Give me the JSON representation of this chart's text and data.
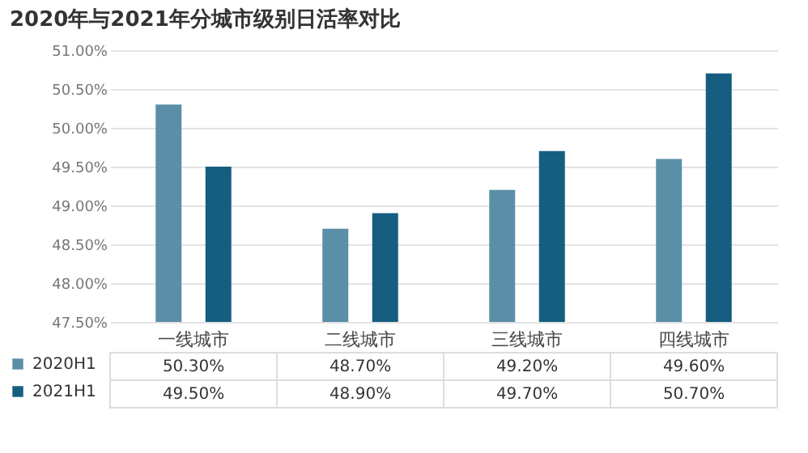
{
  "chart_data": {
    "type": "bar",
    "title": "2020年与2021年分城市级别日活率对比",
    "categories": [
      "一线城市",
      "二线城市",
      "三线城市",
      "四线城市"
    ],
    "series": [
      {
        "name": "2020H1",
        "color": "#5b8fa8",
        "values": [
          50.3,
          48.7,
          49.2,
          49.6
        ],
        "value_labels": [
          "50.30%",
          "48.70%",
          "49.20%",
          "49.60%"
        ]
      },
      {
        "name": "2021H1",
        "color": "#155e80",
        "values": [
          49.5,
          48.9,
          49.7,
          50.7
        ],
        "value_labels": [
          "49.50%",
          "48.90%",
          "49.70%",
          "50.70%"
        ]
      }
    ],
    "ylim": [
      47.5,
      51
    ],
    "yticks": [
      {
        "value": 47.5,
        "label": "47.50%"
      },
      {
        "value": 48,
        "label": "48.00%"
      },
      {
        "value": 48.5,
        "label": "48.50%"
      },
      {
        "value": 49,
        "label": "49.00%"
      },
      {
        "value": 49.5,
        "label": "49.50%"
      },
      {
        "value": 50,
        "label": "50.00%"
      },
      {
        "value": 50.5,
        "label": "50.50%"
      },
      {
        "value": 51,
        "label": "51.00%"
      }
    ],
    "grid": "y",
    "legend": "bottom left"
  }
}
